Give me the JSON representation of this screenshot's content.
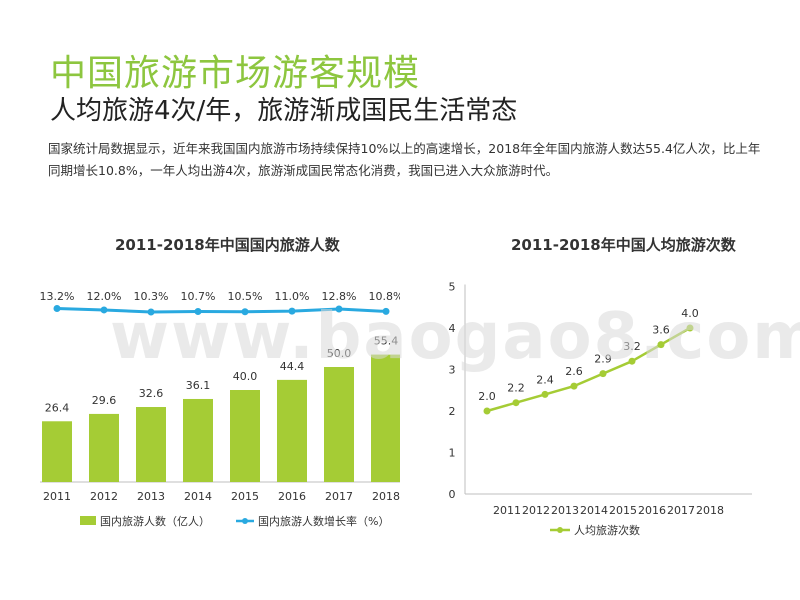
{
  "header": {
    "title": "中国旅游市场游客规模",
    "subtitle": "人均旅游4次/年，旅游渐成国民生活常态",
    "description": "国家统计局数据显示，近年来我国国内旅游市场持续保持10%以上的高速增长，2018年全年国内旅游人数达55.4亿人次，比上年同期增长10.8%，一年人均出游4次，旅游渐成国民常态化消费，我国已进入大众旅游时代。"
  },
  "watermark": "www.baogao8.com",
  "colors": {
    "title": "#8dc63f",
    "bar": "#a5cc35",
    "line_blue": "#29a9e0",
    "line_green": "#a5cc35"
  },
  "chart_data": [
    {
      "type": "bar",
      "title": "2011-2018年中国国内旅游人数",
      "categories": [
        "2011",
        "2012",
        "2013",
        "2014",
        "2015",
        "2016",
        "2017",
        "2018"
      ],
      "series": [
        {
          "name": "国内旅游人数（亿人）",
          "type": "bar",
          "values": [
            26.4,
            29.6,
            32.6,
            36.1,
            40.0,
            44.4,
            50.0,
            55.4
          ],
          "labels": [
            "26.4",
            "29.6",
            "32.6",
            "36.1",
            "40.0",
            "44.4",
            "50.0",
            "55.4"
          ]
        },
        {
          "name": "国内旅游人数增长率（%）",
          "type": "line",
          "values": [
            13.2,
            12.0,
            10.3,
            10.7,
            10.5,
            11.0,
            12.8,
            10.8
          ],
          "labels": [
            "13.2%",
            "12.0%",
            "10.3%",
            "10.7%",
            "10.5%",
            "11.0%",
            "12.8%",
            "10.8%"
          ]
        }
      ],
      "legend_position": "bottom"
    },
    {
      "type": "line",
      "title": "2011-2018年中国人均旅游次数",
      "x": [
        "2011",
        "2012",
        "2013",
        "2014",
        "2015",
        "2016",
        "2017",
        "2018"
      ],
      "y_ticks": [
        "0",
        "1",
        "2",
        "3",
        "4",
        "5"
      ],
      "ylim": [
        0,
        5
      ],
      "series": [
        {
          "name": "人均旅游次数",
          "values": [
            2.0,
            2.2,
            2.4,
            2.6,
            2.9,
            3.2,
            3.6,
            4.0
          ],
          "labels": [
            "2.0",
            "2.2",
            "2.4",
            "2.6",
            "2.9",
            "3.2",
            "3.6",
            "4.0"
          ]
        }
      ],
      "legend_position": "bottom"
    }
  ]
}
